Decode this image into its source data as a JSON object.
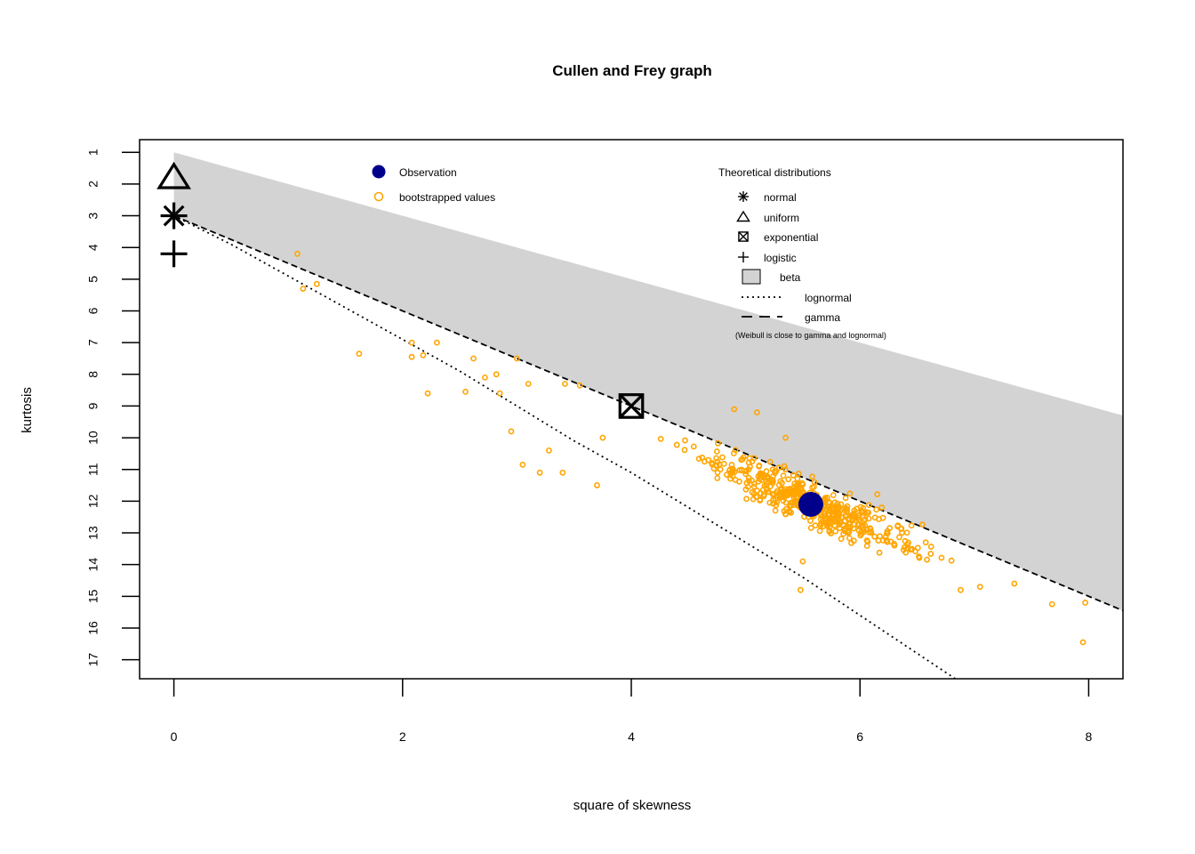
{
  "chart_data": {
    "type": "scatter",
    "title": "Cullen and Frey graph",
    "xlabel": "square of skewness",
    "ylabel": "kurtosis",
    "xlim": [
      -0.3,
      8.3
    ],
    "ylim": [
      17.6,
      0.6
    ],
    "x_ticks": [
      0,
      2,
      4,
      6,
      8
    ],
    "y_ticks": [
      1,
      2,
      3,
      4,
      5,
      6,
      7,
      8,
      9,
      10,
      11,
      12,
      13,
      14,
      15,
      16,
      17
    ],
    "beta_region": {
      "label": "beta",
      "upper_boundary": [
        [
          0,
          1
        ],
        [
          8.3,
          9.3
        ]
      ],
      "lower_boundary": [
        [
          0,
          3
        ],
        [
          8.3,
          15.45
        ]
      ]
    },
    "lognormal_line": {
      "label": "lognormal",
      "points": [
        [
          0,
          3.0
        ],
        [
          0.5,
          3.9
        ],
        [
          1,
          4.9
        ],
        [
          1.5,
          5.9
        ],
        [
          2,
          6.9
        ],
        [
          2.5,
          7.9
        ],
        [
          3,
          9.0
        ],
        [
          3.5,
          10.1
        ],
        [
          4,
          11.1
        ],
        [
          4.5,
          12.2
        ],
        [
          5,
          13.3
        ],
        [
          5.5,
          14.4
        ],
        [
          6,
          15.6
        ],
        [
          6.5,
          16.8
        ],
        [
          7,
          18.0
        ]
      ]
    },
    "gamma_line": {
      "label": "gamma",
      "points": [
        [
          0,
          3
        ],
        [
          8.3,
          15.45
        ]
      ]
    },
    "observation": {
      "label": "Observation",
      "x": 5.57,
      "y": 12.1,
      "color": "#00008B"
    },
    "theoretical_points": [
      {
        "name": "normal",
        "x": 0,
        "y": 3,
        "symbol": "asterisk"
      },
      {
        "name": "uniform",
        "x": 0,
        "y": 1.8,
        "symbol": "triangle"
      },
      {
        "name": "exponential",
        "x": 4,
        "y": 9,
        "symbol": "boxed-x"
      },
      {
        "name": "logistic",
        "x": 0,
        "y": 4.2,
        "symbol": "plus"
      }
    ],
    "bootstrap": {
      "label": "bootstrapped values",
      "color": "#FFA500",
      "highlighted_points": [
        [
          1.08,
          4.2
        ],
        [
          1.13,
          5.3
        ],
        [
          1.25,
          5.15
        ],
        [
          1.62,
          7.35
        ],
        [
          2.08,
          7.0
        ],
        [
          2.08,
          7.45
        ],
        [
          2.18,
          7.4
        ],
        [
          2.22,
          8.6
        ],
        [
          2.3,
          7.0
        ],
        [
          2.55,
          8.55
        ],
        [
          2.62,
          7.5
        ],
        [
          2.72,
          8.1
        ],
        [
          2.82,
          8.0
        ],
        [
          2.85,
          8.6
        ],
        [
          2.95,
          9.8
        ],
        [
          3.0,
          7.5
        ],
        [
          3.05,
          10.85
        ],
        [
          3.1,
          8.3
        ],
        [
          3.2,
          11.1
        ],
        [
          3.28,
          10.4
        ],
        [
          3.4,
          11.1
        ],
        [
          3.42,
          8.3
        ],
        [
          3.55,
          8.35
        ],
        [
          3.7,
          11.5
        ],
        [
          3.75,
          10.0
        ],
        [
          4.9,
          9.1
        ],
        [
          5.1,
          9.2
        ],
        [
          5.35,
          10.0
        ],
        [
          5.48,
          14.8
        ],
        [
          5.5,
          13.9
        ],
        [
          6.88,
          14.8
        ],
        [
          7.05,
          14.7
        ],
        [
          7.35,
          14.6
        ],
        [
          7.68,
          15.25
        ],
        [
          7.95,
          16.45
        ],
        [
          7.97,
          15.2
        ]
      ],
      "cluster": {
        "n": 480,
        "x_range": [
          3.0,
          7.8
        ],
        "typical_offset_below_gamma": 0.7
      }
    },
    "legend_left": {
      "placement": "top-left",
      "items": [
        {
          "label": "Observation",
          "marker": "filled-circle",
          "color": "#00008B"
        },
        {
          "label": "bootstrapped values",
          "marker": "open-circle",
          "color": "#FFA500"
        }
      ]
    },
    "legend_right": {
      "placement": "top-right",
      "title": "Theoretical distributions",
      "items": [
        {
          "label": "normal",
          "marker": "asterisk"
        },
        {
          "label": "uniform",
          "marker": "triangle"
        },
        {
          "label": "exponential",
          "marker": "boxed-x"
        },
        {
          "label": "logistic",
          "marker": "plus"
        },
        {
          "label": "beta",
          "marker": "grey-box"
        },
        {
          "label": "lognormal",
          "marker": "dotted-line"
        },
        {
          "label": "gamma",
          "marker": "dashed-line"
        }
      ],
      "note": "(Weibull is close to gamma and lognormal)"
    },
    "colors": {
      "beta_fill": "#D3D3D3",
      "axis": "#000000"
    }
  }
}
